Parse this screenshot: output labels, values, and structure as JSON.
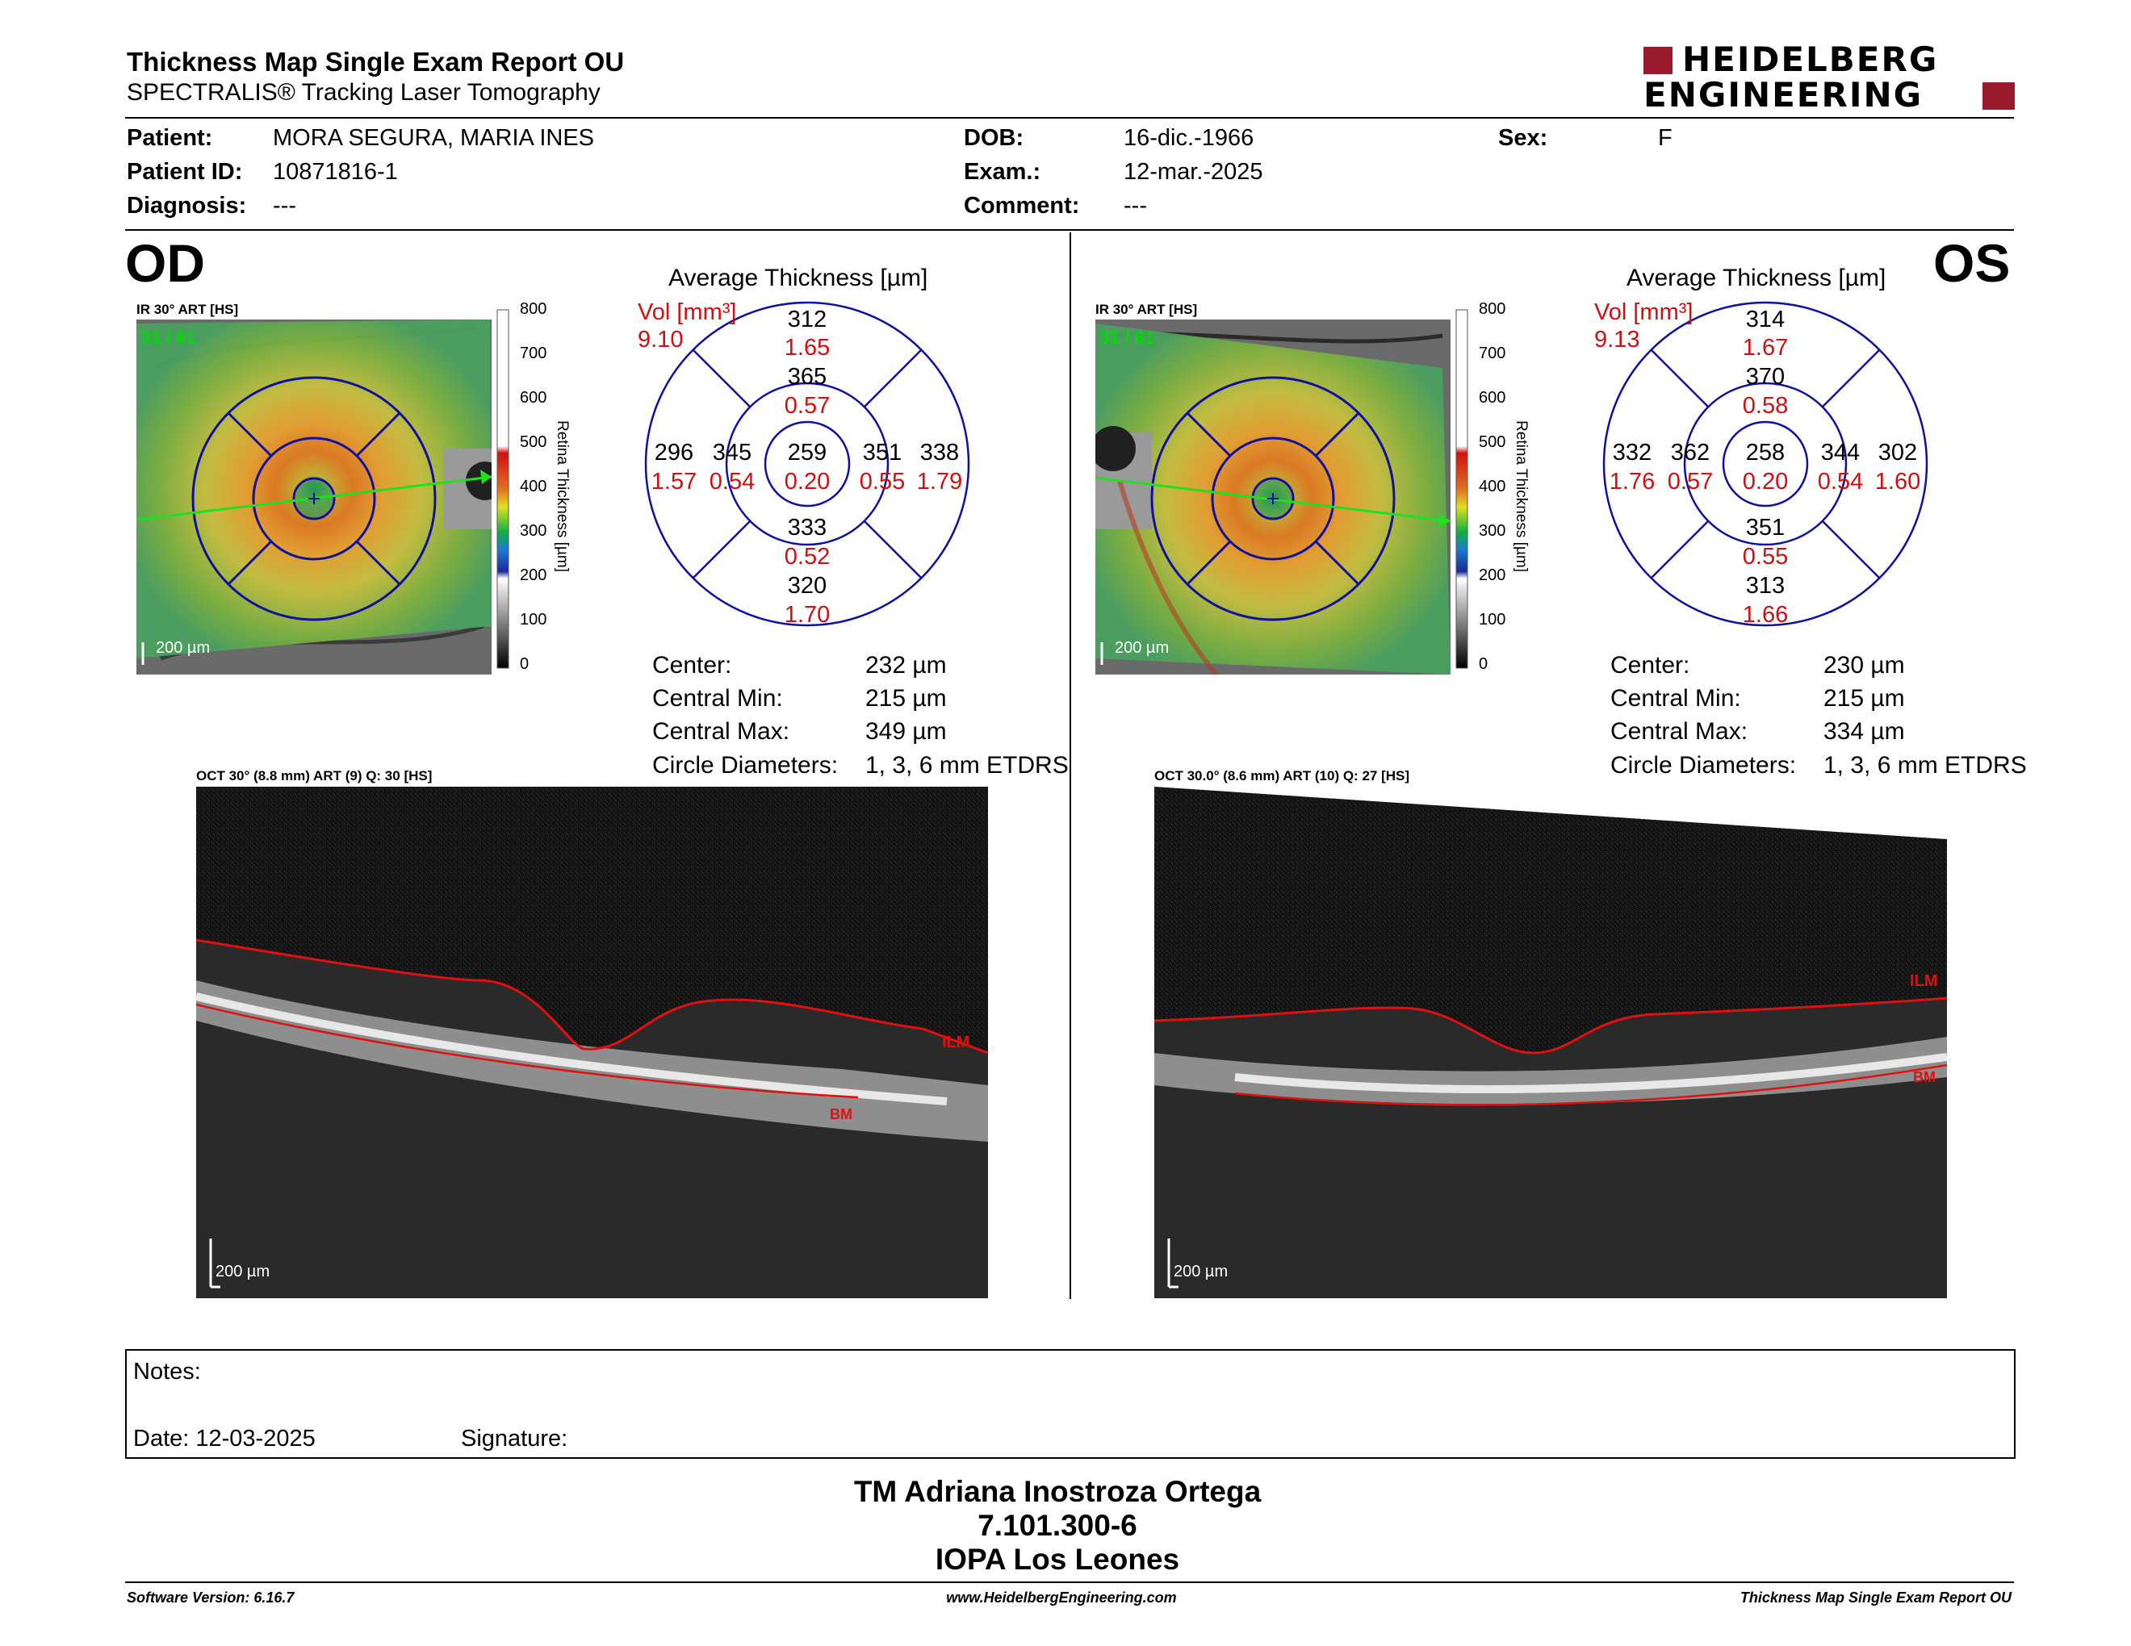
{
  "header": {
    "title": "Thickness Map Single Exam Report OU",
    "subtitle": "SPECTRALIS® Tracking Laser Tomography",
    "logo_line1": "HEIDELBERG",
    "logo_line2": "ENGINEERING"
  },
  "patient": {
    "patient_label": "Patient:",
    "patient_value": "MORA SEGURA, MARIA INES",
    "id_label": "Patient ID:",
    "id_value": "10871816-1",
    "diag_label": "Diagnosis:",
    "diag_value": "---",
    "dob_label": "DOB:",
    "dob_value": "16-dic.-1966",
    "exam_label": "Exam.:",
    "exam_value": "12-mar.-2025",
    "comment_label": "Comment:",
    "comment_value": "---",
    "sex_label": "Sex:",
    "sex_value": "F"
  },
  "colorbar": {
    "ticks": [
      "800",
      "700",
      "600",
      "500",
      "400",
      "300",
      "200",
      "100",
      "0"
    ],
    "label": "Retina Thickness [µm]"
  },
  "od": {
    "eye": "OD",
    "ir_label": "IR 30° ART [HS]",
    "frame": "31 / 61",
    "scale": "200 µm",
    "avg_title": "Average Thickness [µm]",
    "vol_label": "Vol [mm³]",
    "vol_value": "9.10",
    "grid": {
      "center_t": "259",
      "center_v": "0.20",
      "inner_sup_t": "365",
      "inner_sup_v": "0.57",
      "inner_inf_t": "333",
      "inner_inf_v": "0.52",
      "inner_left_t": "345",
      "inner_left_v": "0.54",
      "inner_right_t": "351",
      "inner_right_v": "0.55",
      "outer_sup_t": "312",
      "outer_sup_v": "1.65",
      "outer_inf_t": "320",
      "outer_inf_v": "1.70",
      "outer_left_t": "296",
      "outer_left_v": "1.57",
      "outer_right_t": "338",
      "outer_right_v": "1.79"
    },
    "stats": {
      "center_label": "Center:",
      "center_value": "232 µm",
      "min_label": "Central Min:",
      "min_value": "215 µm",
      "max_label": "Central Max:",
      "max_value": "349 µm",
      "circ_label": "Circle Diameters:",
      "circ_value": "1, 3, 6 mm ETDRS"
    },
    "oct_label": "OCT 30° (8.8 mm) ART (9) Q: 30 [HS]",
    "oct_scale": "200 µm",
    "ilm": "ILM",
    "bm": "BM"
  },
  "os": {
    "eye": "OS",
    "ir_label": "IR 30° ART [HS]",
    "frame": "31 / 61",
    "scale": "200 µm",
    "avg_title": "Average Thickness [µm]",
    "vol_label": "Vol [mm³]",
    "vol_value": "9.13",
    "grid": {
      "center_t": "258",
      "center_v": "0.20",
      "inner_sup_t": "370",
      "inner_sup_v": "0.58",
      "inner_inf_t": "351",
      "inner_inf_v": "0.55",
      "inner_left_t": "362",
      "inner_left_v": "0.57",
      "inner_right_t": "344",
      "inner_right_v": "0.54",
      "outer_sup_t": "314",
      "outer_sup_v": "1.67",
      "outer_inf_t": "313",
      "outer_inf_v": "1.66",
      "outer_left_t": "332",
      "outer_left_v": "1.76",
      "outer_right_t": "302",
      "outer_right_v": "1.60"
    },
    "stats": {
      "center_label": "Center:",
      "center_value": "230 µm",
      "min_label": "Central Min:",
      "min_value": "215 µm",
      "max_label": "Central Max:",
      "max_value": "334 µm",
      "circ_label": "Circle Diameters:",
      "circ_value": "1, 3, 6 mm ETDRS"
    },
    "oct_label": "OCT 30.0° (8.6 mm) ART (10) Q: 27 [HS]",
    "oct_scale": "200 µm",
    "ilm": "ILM",
    "bm": "BM"
  },
  "notes": {
    "notes_label": "Notes:",
    "date_label": "Date: 12-03-2025",
    "signature_label": "Signature:"
  },
  "signer": {
    "name": "TM Adriana Inostroza Ortega",
    "rut": "7.101.300-6",
    "clinic": "IOPA Los Leones"
  },
  "footer": {
    "software": "Software Version: 6.16.7",
    "website": "www.HeidelbergEngineering.com",
    "report": "Thickness Map Single Exam Report OU"
  },
  "colors": {
    "accent_red": "#9a1b2d",
    "ring_blue": "#1010a0",
    "value_red": "#d01010",
    "frame_green": "#00dd00"
  }
}
